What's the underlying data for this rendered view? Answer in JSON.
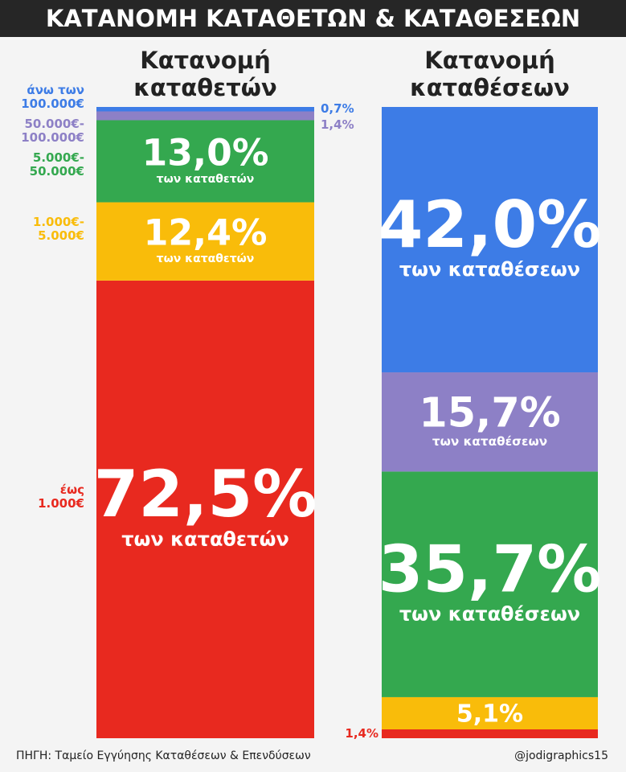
{
  "chart_data": {
    "type": "stacked-bar",
    "title": "ΚΑΤΑΝΟΜΗ ΚΑΤΑΘΕΤΩΝ & ΚΑΤΑΘΕΣΕΩΝ",
    "categories": [
      "Κατανομή\nκαταθετών",
      "Κατανομή\nκαταθέσεων"
    ],
    "unit_labels": [
      "των καταθετών",
      "των καταθέσεων"
    ],
    "series": [
      {
        "name": "έως\n1.000€",
        "color": "#e8291f",
        "values": [
          72.5,
          1.4
        ],
        "value_labels": [
          "72,5%",
          "1,4%"
        ]
      },
      {
        "name": "1.000€-\n5.000€",
        "color": "#f9bc0a",
        "values": [
          12.4,
          5.1
        ],
        "value_labels": [
          "12,4%",
          "5,1%"
        ]
      },
      {
        "name": "5.000€-\n50.000€",
        "color": "#34a84f",
        "values": [
          13.0,
          35.7
        ],
        "value_labels": [
          "13,0%",
          "35,7%"
        ]
      },
      {
        "name": "50.000€-\n100.000€",
        "color": "#8d80c6",
        "values": [
          1.4,
          15.7
        ],
        "value_labels": [
          "1,4%",
          "15,7%"
        ]
      },
      {
        "name": "άνω των\n100.000€",
        "color": "#3d7ce6",
        "values": [
          0.7,
          42.0
        ],
        "value_labels": [
          "0,7%",
          "42,0%"
        ]
      }
    ],
    "source": "ΠΗΓΗ: Ταμείο Εγγύησης Καταθέσεων & Επενδύσεων",
    "credit": "@jodigraphics15"
  }
}
